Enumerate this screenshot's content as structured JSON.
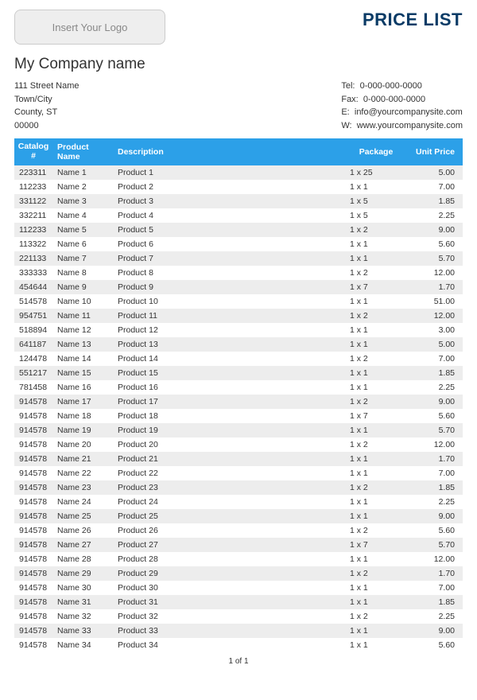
{
  "header": {
    "logo_placeholder": "Insert Your Logo",
    "title": "PRICE LIST",
    "company_name": "My Company name",
    "address": {
      "line1": "111 Street Name",
      "line2": "Town/City",
      "line3": "County, ST",
      "line4": "00000"
    },
    "contact": {
      "tel_label": "Tel:",
      "tel": "0-000-000-0000",
      "fax_label": "Fax:",
      "fax": "0-000-000-0000",
      "email_label": "E:",
      "email": "info@yourcompanysite.com",
      "web_label": "W:",
      "web": "www.yourcompanysite.com"
    }
  },
  "table": {
    "columns": {
      "catalog": "Catalog #",
      "name": "Product Name",
      "desc": "Description",
      "pkg": "Package",
      "price": "Unit Price"
    },
    "colors": {
      "header_bg": "#2ca0e8",
      "header_fg": "#ffffff",
      "row_alt_bg": "#ededed",
      "row_bg": "#ffffff",
      "title_color": "#0a3b66"
    },
    "rows": [
      {
        "catalog": "223311",
        "name": "Name 1",
        "desc": "Product 1",
        "pkg": "1 x 25",
        "price": "5.00"
      },
      {
        "catalog": "112233",
        "name": "Name 2",
        "desc": "Product 2",
        "pkg": "1 x 1",
        "price": "7.00"
      },
      {
        "catalog": "331122",
        "name": "Name 3",
        "desc": "Product 3",
        "pkg": "1 x 5",
        "price": "1.85"
      },
      {
        "catalog": "332211",
        "name": "Name 4",
        "desc": "Product 4",
        "pkg": "1 x 5",
        "price": "2.25"
      },
      {
        "catalog": "112233",
        "name": "Name 5",
        "desc": "Product 5",
        "pkg": "1 x 2",
        "price": "9.00"
      },
      {
        "catalog": "113322",
        "name": "Name 6",
        "desc": "Product 6",
        "pkg": "1 x 1",
        "price": "5.60"
      },
      {
        "catalog": "221133",
        "name": "Name 7",
        "desc": "Product 7",
        "pkg": "1 x 1",
        "price": "5.70"
      },
      {
        "catalog": "333333",
        "name": "Name 8",
        "desc": "Product 8",
        "pkg": "1 x 2",
        "price": "12.00"
      },
      {
        "catalog": "454644",
        "name": "Name 9",
        "desc": "Product 9",
        "pkg": "1 x 7",
        "price": "1.70"
      },
      {
        "catalog": "514578",
        "name": "Name 10",
        "desc": "Product 10",
        "pkg": "1 x 1",
        "price": "51.00"
      },
      {
        "catalog": "954751",
        "name": "Name 11",
        "desc": "Product 11",
        "pkg": "1 x 2",
        "price": "12.00"
      },
      {
        "catalog": "518894",
        "name": "Name 12",
        "desc": "Product 12",
        "pkg": "1 x 1",
        "price": "3.00"
      },
      {
        "catalog": "641187",
        "name": "Name 13",
        "desc": "Product 13",
        "pkg": "1 x 1",
        "price": "5.00"
      },
      {
        "catalog": "124478",
        "name": "Name 14",
        "desc": "Product 14",
        "pkg": "1 x 2",
        "price": "7.00"
      },
      {
        "catalog": "551217",
        "name": "Name 15",
        "desc": "Product 15",
        "pkg": "1 x 1",
        "price": "1.85"
      },
      {
        "catalog": "781458",
        "name": "Name 16",
        "desc": "Product 16",
        "pkg": "1 x 1",
        "price": "2.25"
      },
      {
        "catalog": "914578",
        "name": "Name 17",
        "desc": "Product 17",
        "pkg": "1 x 2",
        "price": "9.00"
      },
      {
        "catalog": "914578",
        "name": "Name 18",
        "desc": "Product 18",
        "pkg": "1 x 7",
        "price": "5.60"
      },
      {
        "catalog": "914578",
        "name": "Name 19",
        "desc": "Product 19",
        "pkg": "1 x 1",
        "price": "5.70"
      },
      {
        "catalog": "914578",
        "name": "Name 20",
        "desc": "Product 20",
        "pkg": "1 x 2",
        "price": "12.00"
      },
      {
        "catalog": "914578",
        "name": "Name 21",
        "desc": "Product 21",
        "pkg": "1 x 1",
        "price": "1.70"
      },
      {
        "catalog": "914578",
        "name": "Name 22",
        "desc": "Product 22",
        "pkg": "1 x 1",
        "price": "7.00"
      },
      {
        "catalog": "914578",
        "name": "Name 23",
        "desc": "Product 23",
        "pkg": "1 x 2",
        "price": "1.85"
      },
      {
        "catalog": "914578",
        "name": "Name 24",
        "desc": "Product 24",
        "pkg": "1 x 1",
        "price": "2.25"
      },
      {
        "catalog": "914578",
        "name": "Name 25",
        "desc": "Product 25",
        "pkg": "1 x 1",
        "price": "9.00"
      },
      {
        "catalog": "914578",
        "name": "Name 26",
        "desc": "Product 26",
        "pkg": "1 x 2",
        "price": "5.60"
      },
      {
        "catalog": "914578",
        "name": "Name 27",
        "desc": "Product 27",
        "pkg": "1 x 7",
        "price": "5.70"
      },
      {
        "catalog": "914578",
        "name": "Name 28",
        "desc": "Product 28",
        "pkg": "1 x 1",
        "price": "12.00"
      },
      {
        "catalog": "914578",
        "name": "Name 29",
        "desc": "Product 29",
        "pkg": "1 x 2",
        "price": "1.70"
      },
      {
        "catalog": "914578",
        "name": "Name 30",
        "desc": "Product 30",
        "pkg": "1 x 1",
        "price": "7.00"
      },
      {
        "catalog": "914578",
        "name": "Name 31",
        "desc": "Product 31",
        "pkg": "1 x 1",
        "price": "1.85"
      },
      {
        "catalog": "914578",
        "name": "Name 32",
        "desc": "Product 32",
        "pkg": "1 x 2",
        "price": "2.25"
      },
      {
        "catalog": "914578",
        "name": "Name 33",
        "desc": "Product 33",
        "pkg": "1 x 1",
        "price": "9.00"
      },
      {
        "catalog": "914578",
        "name": "Name 34",
        "desc": "Product 34",
        "pkg": "1 x 1",
        "price": "5.60"
      }
    ]
  },
  "footer": {
    "page_text": "1 of 1"
  }
}
